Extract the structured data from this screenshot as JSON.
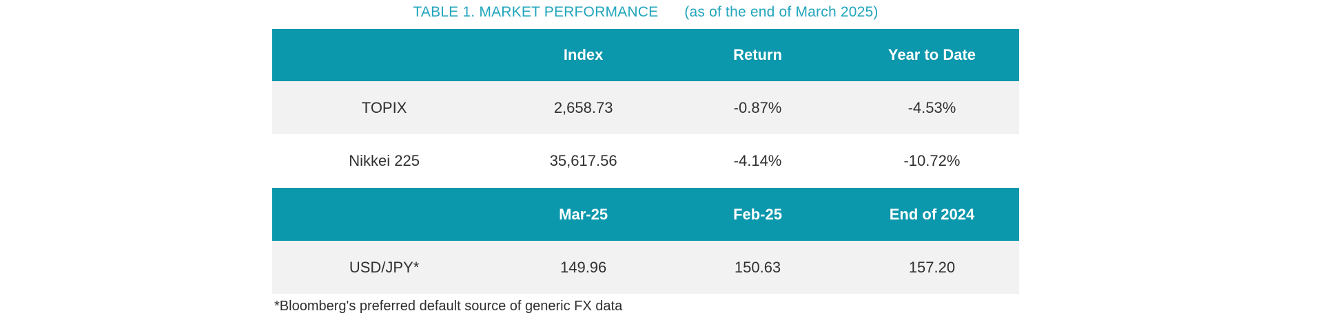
{
  "title": {
    "main": "TABLE 1. MARKET PERFORMANCE",
    "suffix": "(as of the end of March 2025)"
  },
  "colors": {
    "header_band_teal": "#0b97ac",
    "title_teal": "#21a5bc",
    "alt_row_gray": "#f2f2f2",
    "body_text": "#303030",
    "header_text": "#ffffff"
  },
  "market_table": {
    "columns": [
      "",
      "Index",
      "Return",
      "Year to Date"
    ],
    "rows": [
      {
        "label": "TOPIX",
        "index": "2,658.73",
        "return": "-0.87%",
        "ytd": "-4.53%"
      },
      {
        "label": "Nikkei 225",
        "index": "35,617.56",
        "return": "-4.14%",
        "ytd": "-10.72%"
      }
    ]
  },
  "fx_table": {
    "columns": [
      "",
      "Mar-25",
      "Feb-25",
      "End of 2024"
    ],
    "rows": [
      {
        "label": "USD/JPY*",
        "mar_25": "149.96",
        "feb_25": "150.63",
        "end_of_2024": "157.20"
      }
    ]
  },
  "footnote": "*Bloomberg's preferred default source of generic FX data"
}
